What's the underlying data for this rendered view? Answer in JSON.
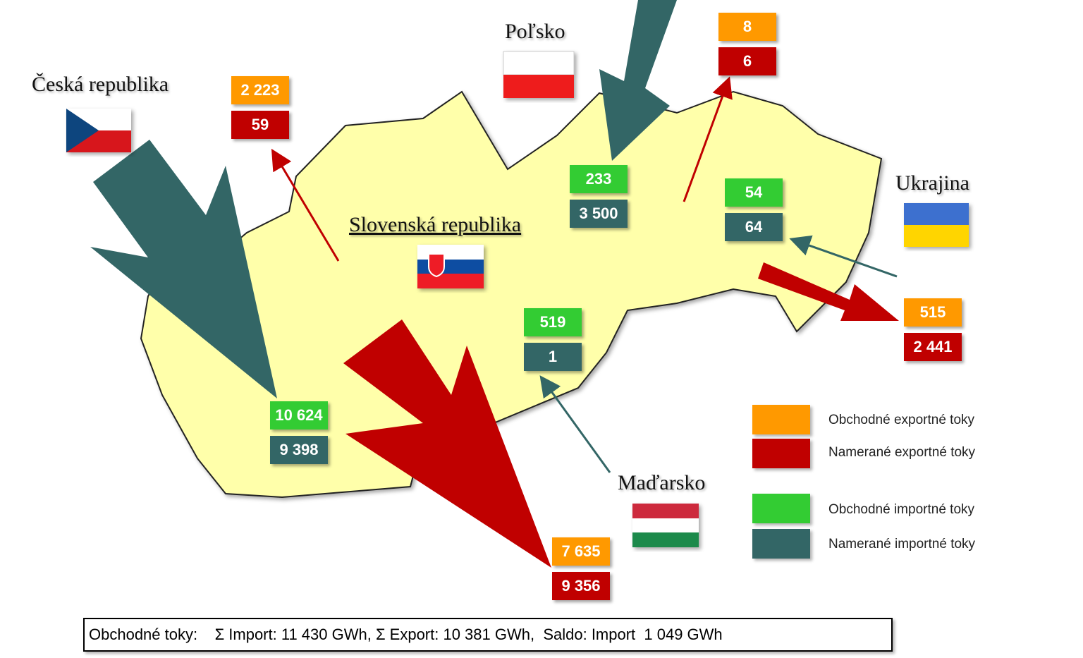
{
  "countries": [
    {
      "label": "Česká republika"
    },
    {
      "label": "Poľsko"
    },
    {
      "label": "Slovenská republika"
    },
    {
      "label": "Ukrajina"
    },
    {
      "label": "Maďarsko"
    }
  ],
  "flows": [
    {
      "top": "2 223",
      "bottom": "59"
    },
    {
      "top": "10 624",
      "bottom": "9 398"
    },
    {
      "top": "8",
      "bottom": "6"
    },
    {
      "top": "233",
      "bottom": "3 500"
    },
    {
      "top": "54",
      "bottom": "64"
    },
    {
      "top": "515",
      "bottom": "2 441"
    },
    {
      "top": "519",
      "bottom": "1"
    },
    {
      "top": "7 635",
      "bottom": "9 356"
    }
  ],
  "legend": [
    "Obchodné exportné toky",
    "Namerané exportné toky",
    "Obchodné importné toky",
    "Namerané importné toky"
  ],
  "footer": {
    "label": "Obchodné toky:",
    "text": "Σ Import: 11 430 GWh, Σ Export: 10 381 GWh,  Saldo: Import  1 049 GWh"
  }
}
